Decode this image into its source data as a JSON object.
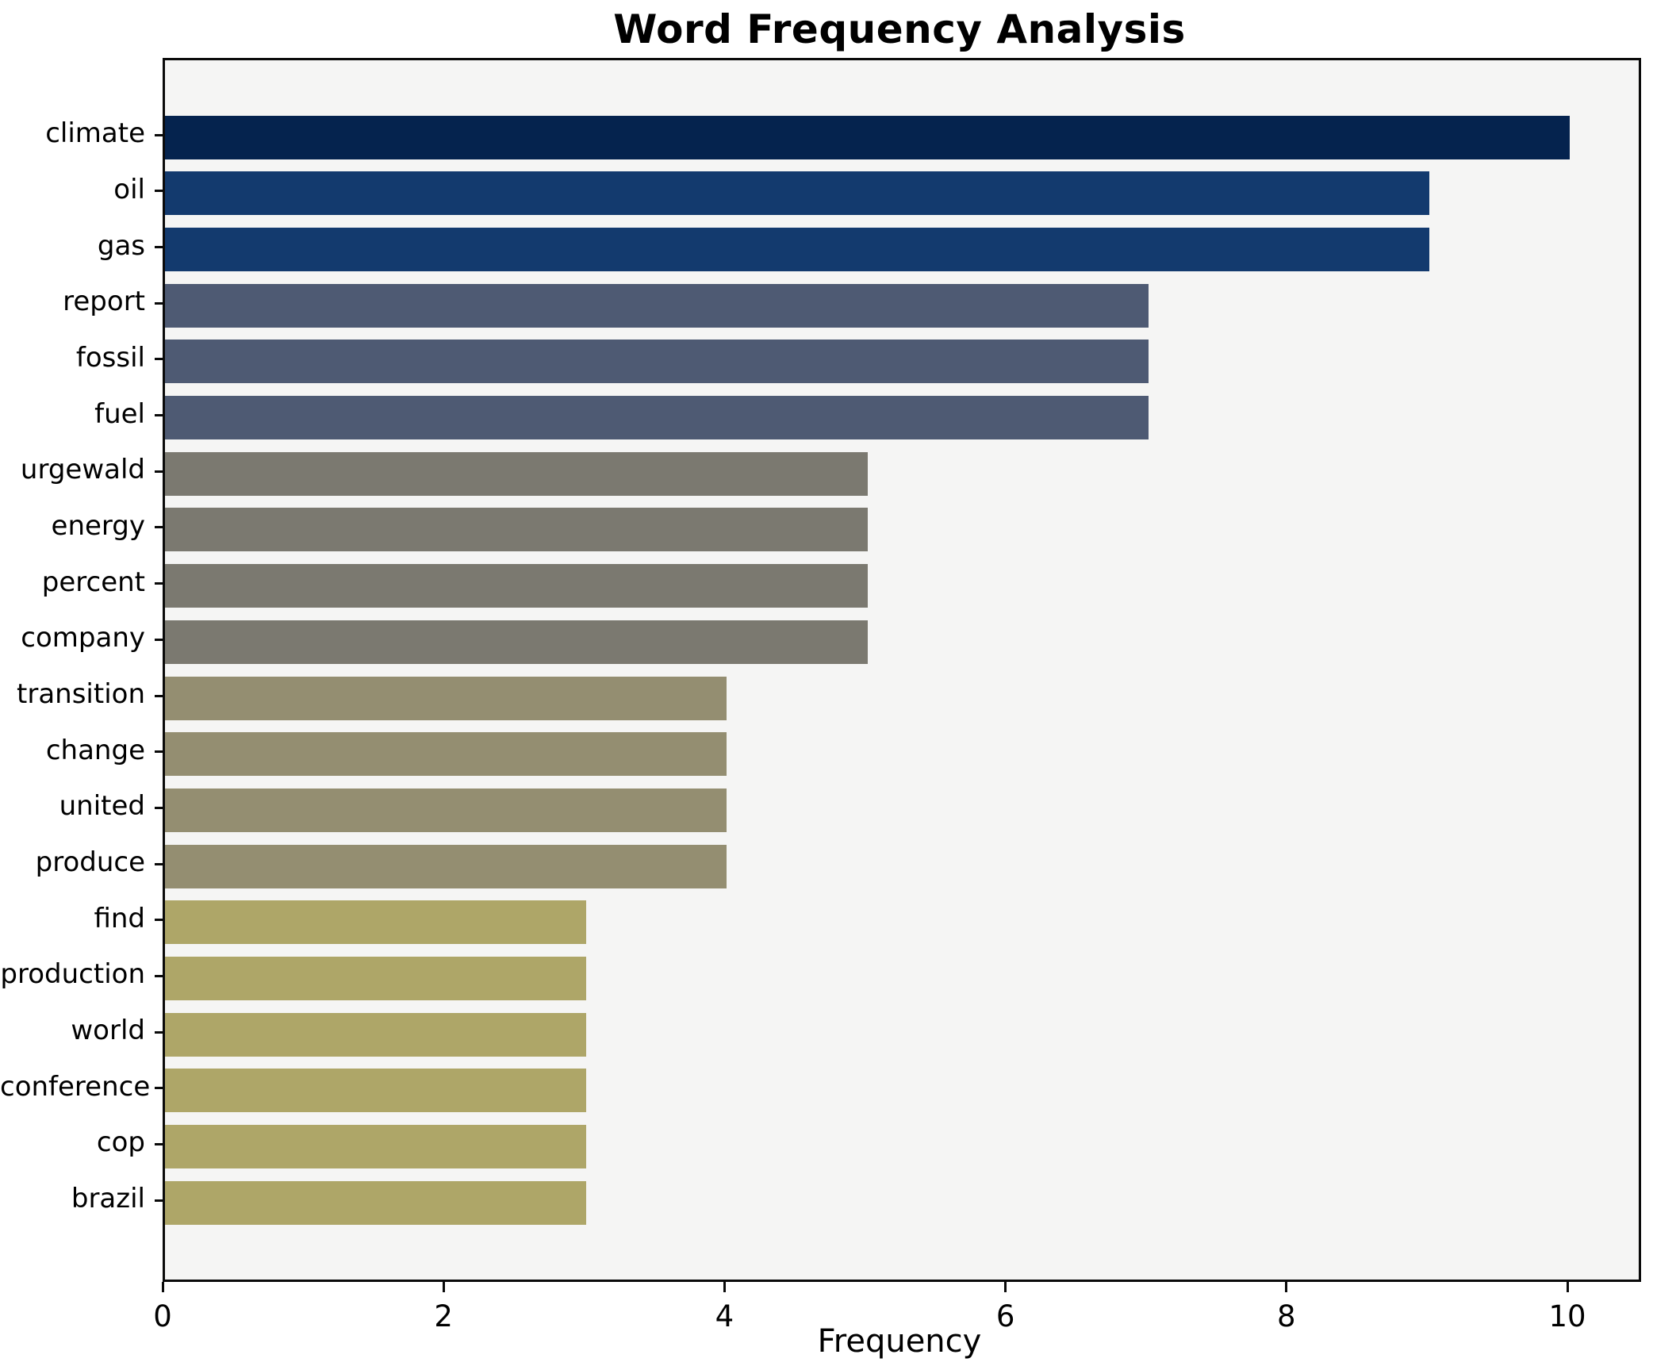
{
  "chart_data": {
    "type": "bar",
    "orientation": "horizontal",
    "title": "Word Frequency Analysis",
    "xlabel": "Frequency",
    "ylabel": "",
    "categories": [
      "climate",
      "oil",
      "gas",
      "report",
      "fossil",
      "fuel",
      "urgewald",
      "energy",
      "percent",
      "company",
      "transition",
      "change",
      "united",
      "produce",
      "find",
      "production",
      "world",
      "conference",
      "cop",
      "brazil"
    ],
    "values": [
      10,
      9,
      9,
      7,
      7,
      7,
      5,
      5,
      5,
      5,
      4,
      4,
      4,
      4,
      3,
      3,
      3,
      3,
      3,
      3
    ],
    "bar_colors": [
      "#05234e",
      "#133a6e",
      "#133a6e",
      "#4e5a73",
      "#4e5a73",
      "#4e5a73",
      "#7b7970",
      "#7b7970",
      "#7b7970",
      "#7b7970",
      "#948e71",
      "#948e71",
      "#948e71",
      "#948e71",
      "#aea668",
      "#aea668",
      "#aea668",
      "#aea668",
      "#aea668",
      "#aea668"
    ],
    "xlim": [
      0,
      10.5
    ],
    "xticks": [
      0,
      2,
      4,
      6,
      8,
      10
    ],
    "grid": false,
    "legend": null,
    "plot_background": "#f5f5f4",
    "figure_background": "#ffffff",
    "spine_color": "#0a0a0a"
  }
}
